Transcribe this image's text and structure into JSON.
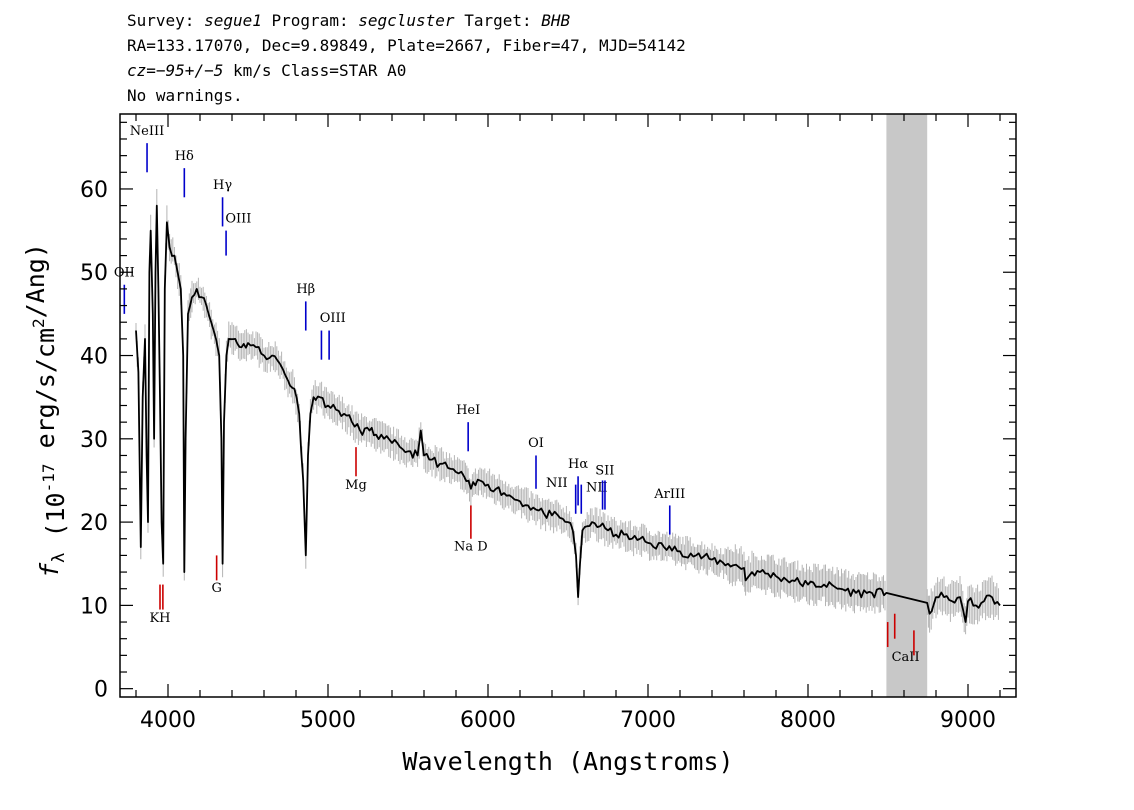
{
  "header": {
    "line1": {
      "survey_label": "Survey:",
      "survey": "segue1",
      "program_label": "Program:",
      "program": "segcluster",
      "target_label": "Target:",
      "target": "BHB"
    },
    "line2": "RA=133.17070, Dec=9.89849, Plate=2667, Fiber=47, MJD=54142",
    "line3": {
      "cz_label": "cz=",
      "cz_value": "−95+/−5",
      "rest": " km/s Class=STAR A0"
    },
    "line4": "No warnings."
  },
  "chart_data": {
    "type": "line",
    "xlabel": "Wavelength (Angstroms)",
    "ylabel": "f_λ (10^-17 erg/s/cm^2/Ang)",
    "xlim": [
      3700,
      9300
    ],
    "ylim": [
      -1,
      69
    ],
    "xticks": [
      4000,
      5000,
      6000,
      7000,
      8000,
      9000
    ],
    "yticks": [
      0,
      10,
      20,
      30,
      40,
      50,
      60
    ],
    "masked_region": [
      8490,
      8745
    ],
    "series": [
      {
        "style": "flux",
        "points": [
          [
            3800,
            43
          ],
          [
            3815,
            38
          ],
          [
            3830,
            17
          ],
          [
            3842,
            35
          ],
          [
            3856,
            42
          ],
          [
            3866,
            28
          ],
          [
            3875,
            20
          ],
          [
            3884,
            50
          ],
          [
            3892,
            55
          ],
          [
            3905,
            45
          ],
          [
            3913,
            30
          ],
          [
            3922,
            50
          ],
          [
            3930,
            58
          ],
          [
            3940,
            48
          ],
          [
            3950,
            35
          ],
          [
            3960,
            20
          ],
          [
            3970,
            15
          ],
          [
            3980,
            48
          ],
          [
            3993,
            56
          ],
          [
            4010,
            53
          ],
          [
            4040,
            52
          ],
          [
            4060,
            50
          ],
          [
            4080,
            48
          ],
          [
            4095,
            40
          ],
          [
            4102,
            14
          ],
          [
            4110,
            30
          ],
          [
            4125,
            45
          ],
          [
            4150,
            47
          ],
          [
            4180,
            48
          ],
          [
            4210,
            47
          ],
          [
            4240,
            46
          ],
          [
            4270,
            44
          ],
          [
            4300,
            42
          ],
          [
            4320,
            40
          ],
          [
            4334,
            30
          ],
          [
            4341,
            15
          ],
          [
            4350,
            32
          ],
          [
            4365,
            40
          ],
          [
            4380,
            42
          ],
          [
            4420,
            42
          ],
          [
            4460,
            41
          ],
          [
            4500,
            41.5
          ],
          [
            4550,
            41
          ],
          [
            4600,
            40
          ],
          [
            4650,
            40
          ],
          [
            4700,
            39
          ],
          [
            4750,
            37
          ],
          [
            4790,
            36
          ],
          [
            4820,
            33
          ],
          [
            4845,
            25
          ],
          [
            4861,
            16
          ],
          [
            4875,
            28
          ],
          [
            4890,
            33
          ],
          [
            4910,
            35
          ],
          [
            4950,
            35
          ],
          [
            5000,
            34
          ],
          [
            5050,
            33.5
          ],
          [
            5100,
            33
          ],
          [
            5150,
            32
          ],
          [
            5200,
            31
          ],
          [
            5260,
            31
          ],
          [
            5300,
            30.5
          ],
          [
            5350,
            30
          ],
          [
            5400,
            29.5
          ],
          [
            5450,
            29
          ],
          [
            5500,
            28.5
          ],
          [
            5560,
            28
          ],
          [
            5580,
            31
          ],
          [
            5600,
            28
          ],
          [
            5650,
            27.5
          ],
          [
            5700,
            27
          ],
          [
            5750,
            26.5
          ],
          [
            5800,
            26
          ],
          [
            5850,
            25.5
          ],
          [
            5893,
            24
          ],
          [
            5950,
            25
          ],
          [
            6000,
            24.5
          ],
          [
            6050,
            24
          ],
          [
            6100,
            23.5
          ],
          [
            6150,
            23
          ],
          [
            6200,
            22.5
          ],
          [
            6250,
            22
          ],
          [
            6300,
            21.5
          ],
          [
            6350,
            21
          ],
          [
            6400,
            20.8
          ],
          [
            6450,
            20.5
          ],
          [
            6500,
            20
          ],
          [
            6530,
            19
          ],
          [
            6550,
            16
          ],
          [
            6563,
            11
          ],
          [
            6575,
            15
          ],
          [
            6590,
            19
          ],
          [
            6650,
            20
          ],
          [
            6700,
            19.5
          ],
          [
            6750,
            19
          ],
          [
            6800,
            18.5
          ],
          [
            6850,
            18.5
          ],
          [
            6900,
            18
          ],
          [
            6950,
            18
          ],
          [
            7000,
            17.5
          ],
          [
            7100,
            17
          ],
          [
            7200,
            16.5
          ],
          [
            7300,
            16
          ],
          [
            7400,
            15.5
          ],
          [
            7500,
            15
          ],
          [
            7600,
            14.5
          ],
          [
            7610,
            13
          ],
          [
            7650,
            14
          ],
          [
            7700,
            14
          ],
          [
            7800,
            13.5
          ],
          [
            7900,
            13
          ],
          [
            8000,
            12.5
          ],
          [
            8100,
            12.5
          ],
          [
            8200,
            12
          ],
          [
            8300,
            11.5
          ],
          [
            8400,
            11.5
          ],
          [
            8490,
            11.5
          ],
          [
            8745,
            10.3
          ],
          [
            8760,
            9
          ],
          [
            8800,
            11
          ],
          [
            8850,
            11
          ],
          [
            8900,
            10.5
          ],
          [
            8950,
            11
          ],
          [
            8985,
            8
          ],
          [
            9000,
            10.5
          ],
          [
            9050,
            10
          ],
          [
            9100,
            10.5
          ],
          [
            9150,
            11
          ],
          [
            9200,
            10
          ]
        ]
      }
    ],
    "lines": [
      {
        "name": "NeIII",
        "x": 3869,
        "y1": 62,
        "y2": 65.5,
        "lx": 3869,
        "ly": 66.5,
        "color": "#0000cc"
      },
      {
        "name": "Hδ",
        "x": 4102,
        "y1": 59,
        "y2": 62.5,
        "lx": 4102,
        "ly": 63.5,
        "color": "#0000cc"
      },
      {
        "name": "Hγ",
        "x": 4341,
        "y1": 55.5,
        "y2": 59,
        "lx": 4341,
        "ly": 60,
        "color": "#0000cc"
      },
      {
        "name": "OIII",
        "x": 4363,
        "y1": 52,
        "y2": 55,
        "lx": 4440,
        "ly": 56,
        "color": "#0000cc"
      },
      {
        "name": "OII",
        "x": 3727,
        "y1": 45,
        "y2": 48.5,
        "lx": 3727,
        "ly": 49.5,
        "color": "#0000cc"
      },
      {
        "name": "Hβ",
        "x": 4861,
        "y1": 43,
        "y2": 46.5,
        "lx": 4861,
        "ly": 47.5,
        "color": "#0000cc"
      },
      {
        "name": "OIII",
        "x": 4959,
        "y1": 39.5,
        "y2": 43,
        "lx": 5030,
        "ly": 44,
        "color": "#0000cc"
      },
      {
        "name": "",
        "x": 5007,
        "y1": 39.5,
        "y2": 43,
        "lx": 5007,
        "ly": 44,
        "color": "#0000cc"
      },
      {
        "name": "HeI",
        "x": 5876,
        "y1": 28.5,
        "y2": 32,
        "lx": 5876,
        "ly": 33,
        "color": "#0000cc"
      },
      {
        "name": "OI",
        "x": 6300,
        "y1": 24,
        "y2": 28,
        "lx": 6300,
        "ly": 29,
        "color": "#0000cc"
      },
      {
        "name": "NII",
        "x": 6548,
        "y1": 21,
        "y2": 24.5,
        "lx": 6430,
        "ly": 24.2,
        "color": "#0000cc"
      },
      {
        "name": "Hα",
        "x": 6563,
        "y1": 22,
        "y2": 25.5,
        "lx": 6563,
        "ly": 26.5,
        "color": "#0000cc"
      },
      {
        "name": "",
        "x": 6583,
        "y1": 21,
        "y2": 24.5,
        "lx": 6583,
        "ly": 25.5,
        "color": "#0000cc"
      },
      {
        "name": "NII",
        "x": 6716,
        "y1": 21.5,
        "y2": 25,
        "lx": 6680,
        "ly": 23.7,
        "color": "#0000cc"
      },
      {
        "name": "SII",
        "x": 6731,
        "y1": 21.5,
        "y2": 25,
        "lx": 6730,
        "ly": 25.7,
        "color": "#0000cc"
      },
      {
        "name": "ArIII",
        "x": 7136,
        "y1": 18.5,
        "y2": 22,
        "lx": 7136,
        "ly": 22.9,
        "color": "#0000cc"
      },
      {
        "name": "Mg",
        "x": 5175,
        "y1": 25.5,
        "y2": 29,
        "lx": 5175,
        "ly": 24,
        "color": "#cc0000"
      },
      {
        "name": "Na D",
        "x": 5893,
        "y1": 18,
        "y2": 22,
        "lx": 5893,
        "ly": 16.6,
        "color": "#cc0000"
      },
      {
        "name": "G",
        "x": 4304,
        "y1": 13,
        "y2": 16,
        "lx": 4304,
        "ly": 11.6,
        "color": "#cc0000"
      },
      {
        "name": "KH",
        "x": 3950,
        "y1": 9.5,
        "y2": 12.5,
        "lx": 3950,
        "ly": 8.0,
        "color": "#cc0000"
      },
      {
        "name": "",
        "x": 3968,
        "y1": 9.5,
        "y2": 12.5,
        "lx": 3968,
        "ly": 8.0,
        "color": "#cc0000"
      },
      {
        "name": "CaII",
        "x": 8498,
        "y1": 5,
        "y2": 8,
        "lx": 8610,
        "ly": 3.3,
        "color": "#cc0000"
      },
      {
        "name": "",
        "x": 8542,
        "y1": 6,
        "y2": 9,
        "lx": 8542,
        "ly": 3.3,
        "color": "#cc0000"
      },
      {
        "name": "",
        "x": 8662,
        "y1": 4,
        "y2": 7,
        "lx": 8662,
        "ly": 3.3,
        "color": "#cc0000"
      }
    ]
  }
}
